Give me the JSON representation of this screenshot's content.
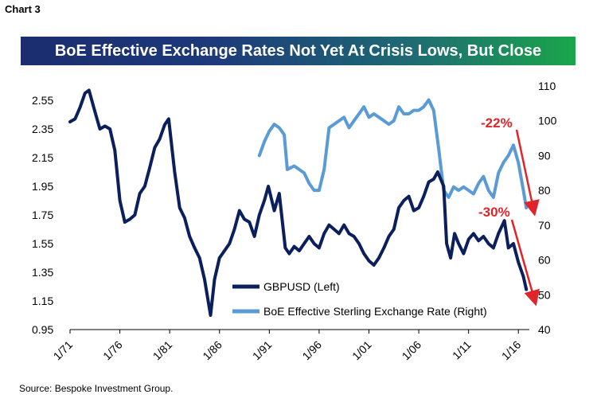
{
  "header": {
    "chart_label": "Chart 3"
  },
  "footer": {
    "source": "Source: Bespoke Investment Group."
  },
  "colors": {
    "gbpusd": "#0b1f5c",
    "sterling_index": "#5b9bd5",
    "annotation": "#e0242b"
  },
  "chart_data": {
    "type": "line",
    "title": "BoE Effective Exchange Rates Not Yet At Crisis Lows, But Close",
    "x_tick_labels": [
      "1/71",
      "1/76",
      "1/81",
      "1/86",
      "1/91",
      "1/96",
      "1/01",
      "1/06",
      "1/11",
      "1/16"
    ],
    "x_range": [
      1971.0,
      2017.1
    ],
    "y_left": {
      "ticks": [
        "2.55",
        "2.35",
        "2.15",
        "1.95",
        "1.75",
        "1.55",
        "1.35",
        "1.15",
        "0.95"
      ],
      "range": [
        0.95,
        2.65
      ]
    },
    "y_right": {
      "ticks": [
        "110",
        "100",
        "90",
        "80",
        "70",
        "60",
        "50",
        "40"
      ],
      "range": [
        40,
        110
      ]
    },
    "grid": false,
    "legend_position": "lower-center",
    "series": [
      {
        "name": "GBPUSD (Left)",
        "axis": "left",
        "x": [
          1971.0,
          1971.5,
          1972.0,
          1972.5,
          1972.9,
          1973.5,
          1974.0,
          1974.5,
          1975.0,
          1975.5,
          1976.0,
          1976.5,
          1977.0,
          1977.5,
          1978.0,
          1978.5,
          1979.0,
          1979.5,
          1980.0,
          1980.5,
          1980.9,
          1981.5,
          1982.0,
          1982.5,
          1983.0,
          1983.5,
          1984.0,
          1984.5,
          1985.1,
          1985.5,
          1986.0,
          1986.5,
          1987.0,
          1987.5,
          1988.0,
          1988.5,
          1989.0,
          1989.5,
          1990.0,
          1990.5,
          1990.9,
          1991.5,
          1992.0,
          1992.6,
          1993.0,
          1993.5,
          1994.0,
          1994.5,
          1995.0,
          1995.5,
          1996.0,
          1996.5,
          1997.0,
          1997.5,
          1998.0,
          1998.5,
          1999.0,
          1999.5,
          2000.0,
          2000.5,
          2001.0,
          2001.5,
          2002.0,
          2002.5,
          2003.0,
          2003.5,
          2004.0,
          2004.5,
          2005.0,
          2005.5,
          2006.0,
          2006.5,
          2007.0,
          2007.5,
          2007.9,
          2008.5,
          2008.8,
          2009.2,
          2009.6,
          2010.0,
          2010.5,
          2011.0,
          2011.5,
          2012.0,
          2012.5,
          2013.0,
          2013.5,
          2014.0,
          2014.6,
          2015.0,
          2015.5,
          2016.0,
          2016.5,
          2016.8
        ],
        "values": [
          2.4,
          2.42,
          2.5,
          2.6,
          2.62,
          2.47,
          2.35,
          2.37,
          2.35,
          2.2,
          1.85,
          1.7,
          1.72,
          1.75,
          1.9,
          1.95,
          2.08,
          2.22,
          2.28,
          2.38,
          2.42,
          2.05,
          1.8,
          1.73,
          1.6,
          1.52,
          1.45,
          1.3,
          1.05,
          1.3,
          1.45,
          1.5,
          1.55,
          1.65,
          1.78,
          1.72,
          1.7,
          1.6,
          1.75,
          1.85,
          1.95,
          1.78,
          1.9,
          1.52,
          1.48,
          1.53,
          1.5,
          1.55,
          1.6,
          1.55,
          1.52,
          1.62,
          1.68,
          1.65,
          1.62,
          1.68,
          1.62,
          1.6,
          1.55,
          1.48,
          1.43,
          1.4,
          1.45,
          1.52,
          1.6,
          1.65,
          1.8,
          1.85,
          1.88,
          1.78,
          1.8,
          1.88,
          1.98,
          2.0,
          2.05,
          1.95,
          1.55,
          1.45,
          1.62,
          1.55,
          1.48,
          1.58,
          1.62,
          1.57,
          1.6,
          1.55,
          1.52,
          1.62,
          1.71,
          1.52,
          1.55,
          1.42,
          1.32,
          1.23
        ]
      },
      {
        "name": "BoE Effective Sterling Exchange Rate (Right)",
        "axis": "right",
        "x": [
          1990.0,
          1990.5,
          1991.0,
          1991.5,
          1992.0,
          1992.5,
          1992.8,
          1993.5,
          1994.0,
          1994.5,
          1995.0,
          1995.5,
          1996.0,
          1996.5,
          1997.0,
          1997.5,
          1998.0,
          1998.5,
          1999.0,
          1999.5,
          2000.0,
          2000.5,
          2001.0,
          2001.5,
          2002.0,
          2002.5,
          2003.0,
          2003.5,
          2004.0,
          2004.5,
          2005.0,
          2005.5,
          2006.0,
          2006.5,
          2007.0,
          2007.5,
          2008.0,
          2008.5,
          2009.0,
          2009.5,
          2010.0,
          2010.5,
          2011.0,
          2011.5,
          2012.0,
          2012.5,
          2013.0,
          2013.5,
          2014.0,
          2014.5,
          2015.0,
          2015.5,
          2016.0,
          2016.5,
          2016.8
        ],
        "values": [
          90,
          94,
          97,
          99,
          98,
          96,
          86,
          87,
          86,
          85,
          82,
          80,
          80,
          86,
          98,
          99,
          100,
          101,
          98,
          100,
          102,
          104,
          101,
          102,
          101,
          100,
          99,
          100,
          104,
          102,
          102,
          103,
          103,
          104,
          106,
          103,
          92,
          80,
          78,
          81,
          80,
          81,
          80,
          79,
          82,
          84,
          80,
          78,
          85,
          88,
          90,
          93,
          88,
          80,
          75
        ]
      }
    ],
    "annotations": [
      {
        "text": "-22%",
        "series": "BoE Effective Sterling Exchange Rate (Right)"
      },
      {
        "text": "-30%",
        "series": "GBPUSD (Left)"
      }
    ]
  }
}
